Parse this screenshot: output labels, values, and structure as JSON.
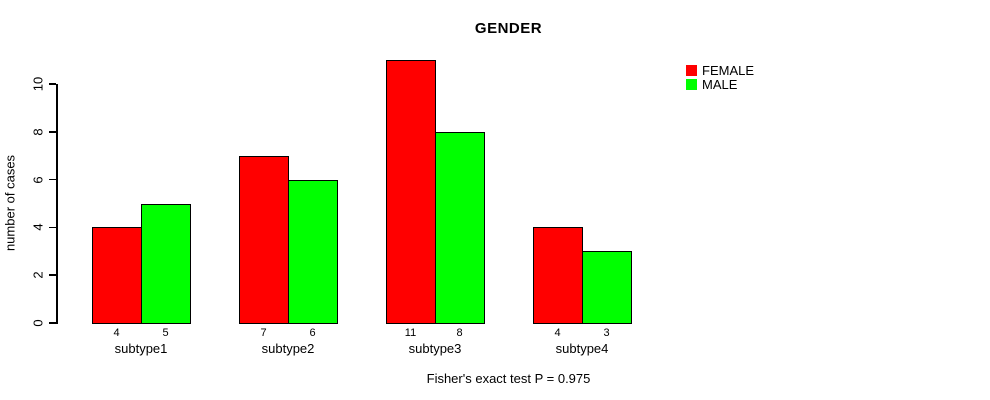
{
  "figure": {
    "title": "GENDER",
    "y_axis_label": "number of cases",
    "footer_note": "Fisher's exact test P = 0.975"
  },
  "chart_data": {
    "type": "bar",
    "title": "GENDER",
    "categories": [
      "subtype1",
      "subtype2",
      "subtype3",
      "subtype4"
    ],
    "series": [
      {
        "name": "FEMALE",
        "color": "#FF0000",
        "values": [
          4,
          7,
          11,
          4
        ]
      },
      {
        "name": "MALE",
        "color": "#00FF00",
        "values": [
          5,
          6,
          8,
          3
        ]
      }
    ],
    "bar_value_labels": [
      [
        4,
        5
      ],
      [
        7,
        6
      ],
      [
        11,
        8
      ],
      [
        4,
        3
      ]
    ],
    "xlabel": "",
    "ylabel": "number of cases",
    "yticks": [
      0,
      2,
      4,
      6,
      8,
      10
    ],
    "ylim": [
      0,
      11.5
    ],
    "grid": false,
    "legend_position": "top-right",
    "annotation": "Fisher's exact test P = 0.975",
    "bar_outline_color": "#000000",
    "background": "#FFFFFF",
    "text_color": "#000000"
  }
}
